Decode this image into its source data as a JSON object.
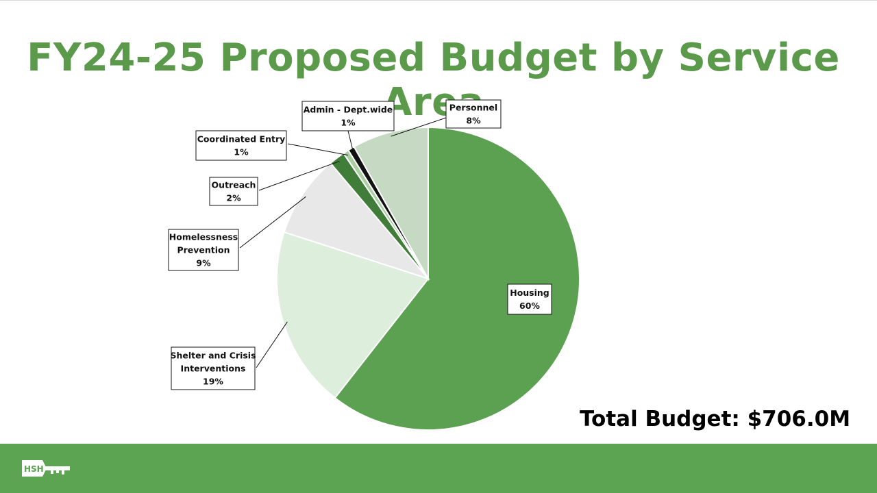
{
  "slide": {
    "title": "FY24-25 Proposed Budget by Service Area",
    "total_label": "Total Budget: $706.0M",
    "logo_text": "HSH"
  },
  "chart_data": {
    "type": "pie",
    "title": "FY24-25 Proposed Budget by Service Area",
    "unit": "%",
    "start": "12 o'clock, clockwise",
    "slices": [
      {
        "name": "Housing",
        "label_lines": [
          "Housing"
        ],
        "value": 60.2,
        "pct_label": "60%",
        "color": "#5ca151"
      },
      {
        "name": "Shelter and Crisis Interventions",
        "label_lines": [
          "Shelter and Crisis",
          "Interventions"
        ],
        "value": 19.3,
        "pct_label": "19%",
        "color": "#ddeedd"
      },
      {
        "name": "Homelessness Prevention",
        "label_lines": [
          "Homelessness",
          "Prevention"
        ],
        "value": 8.8,
        "pct_label": "9%",
        "color": "#e8e8e8"
      },
      {
        "name": "Outreach",
        "label_lines": [
          "Outreach"
        ],
        "value": 1.7,
        "pct_label": "2%",
        "color": "#3f7d38"
      },
      {
        "name": "Coordinated Entry",
        "label_lines": [
          "Coordinated Entry"
        ],
        "value": 0.6,
        "pct_label": "1%",
        "color": "#a9cfa2"
      },
      {
        "name": "Admin - Dept.wide",
        "label_lines": [
          "Admin - Dept.wide"
        ],
        "value": 0.7,
        "pct_label": "1%",
        "color": "#111111"
      },
      {
        "name": "Personnel",
        "label_lines": [
          "Personnel"
        ],
        "value": 8.1,
        "pct_label": "8%",
        "color": "#c6dac3"
      }
    ]
  }
}
